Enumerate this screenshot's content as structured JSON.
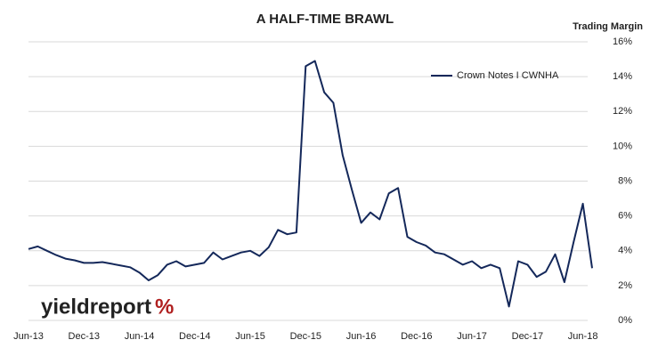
{
  "chart_data": {
    "type": "line",
    "title": "A HALF-TIME BRAWL",
    "y_axis_label": "Trading Margin",
    "x": [
      "2013-06",
      "2013-07",
      "2013-08",
      "2013-09",
      "2013-10",
      "2013-11",
      "2013-12",
      "2014-01",
      "2014-02",
      "2014-03",
      "2014-04",
      "2014-05",
      "2014-06",
      "2014-07",
      "2014-08",
      "2014-09",
      "2014-10",
      "2014-11",
      "2014-12",
      "2015-01",
      "2015-02",
      "2015-03",
      "2015-04",
      "2015-05",
      "2015-06",
      "2015-07",
      "2015-08",
      "2015-09",
      "2015-10",
      "2015-11",
      "2015-12",
      "2016-01",
      "2016-02",
      "2016-03",
      "2016-04",
      "2016-05",
      "2016-06",
      "2016-07",
      "2016-08",
      "2016-09",
      "2016-10",
      "2016-11",
      "2016-12",
      "2017-01",
      "2017-02",
      "2017-03",
      "2017-04",
      "2017-05",
      "2017-06",
      "2017-07",
      "2017-08",
      "2017-09",
      "2017-10",
      "2017-11",
      "2017-12",
      "2018-01",
      "2018-02",
      "2018-03",
      "2018-04",
      "2018-05",
      "2018-06",
      "2018-07"
    ],
    "series": [
      {
        "name": "Crown Notes I CWNHA",
        "color": "#14285a",
        "values": [
          4.1,
          4.25,
          4.0,
          3.75,
          3.55,
          3.45,
          3.3,
          3.3,
          3.35,
          3.25,
          3.15,
          3.05,
          2.75,
          2.3,
          2.6,
          3.2,
          3.4,
          3.1,
          3.2,
          3.3,
          3.9,
          3.5,
          3.7,
          3.9,
          4.0,
          3.7,
          4.2,
          5.2,
          4.95,
          5.05,
          14.6,
          14.9,
          13.1,
          12.5,
          9.5,
          7.5,
          5.6,
          6.2,
          5.8,
          7.3,
          7.6,
          4.8,
          4.5,
          4.3,
          3.9,
          3.8,
          3.5,
          3.2,
          3.4,
          3.0,
          3.2,
          3.0,
          0.8,
          3.4,
          3.2,
          2.5,
          2.8,
          3.8,
          2.2,
          4.5,
          6.7,
          3.0
        ]
      }
    ],
    "xlim": [
      "2013-06",
      "2018-07"
    ],
    "xticks": [
      {
        "value": "2013-06",
        "label": "Jun-13"
      },
      {
        "value": "2013-12",
        "label": "Dec-13"
      },
      {
        "value": "2014-06",
        "label": "Jun-14"
      },
      {
        "value": "2014-12",
        "label": "Dec-14"
      },
      {
        "value": "2015-06",
        "label": "Jun-15"
      },
      {
        "value": "2015-12",
        "label": "Dec-15"
      },
      {
        "value": "2016-06",
        "label": "Jun-16"
      },
      {
        "value": "2016-12",
        "label": "Dec-16"
      },
      {
        "value": "2017-06",
        "label": "Jun-17"
      },
      {
        "value": "2017-12",
        "label": "Dec-17"
      },
      {
        "value": "2018-06",
        "label": "Jun-18"
      }
    ],
    "ylim": [
      0,
      16
    ],
    "yticks": [
      {
        "value": 0,
        "label": "0%"
      },
      {
        "value": 2,
        "label": "2%"
      },
      {
        "value": 4,
        "label": "4%"
      },
      {
        "value": 6,
        "label": "6%"
      },
      {
        "value": 8,
        "label": "8%"
      },
      {
        "value": 10,
        "label": "10%"
      },
      {
        "value": 12,
        "label": "12%"
      },
      {
        "value": 14,
        "label": "14%"
      },
      {
        "value": 16,
        "label": "16%"
      }
    ],
    "grid": true,
    "legend": "top-right"
  },
  "logo": {
    "text": "yieldreport",
    "symbol": "%"
  }
}
